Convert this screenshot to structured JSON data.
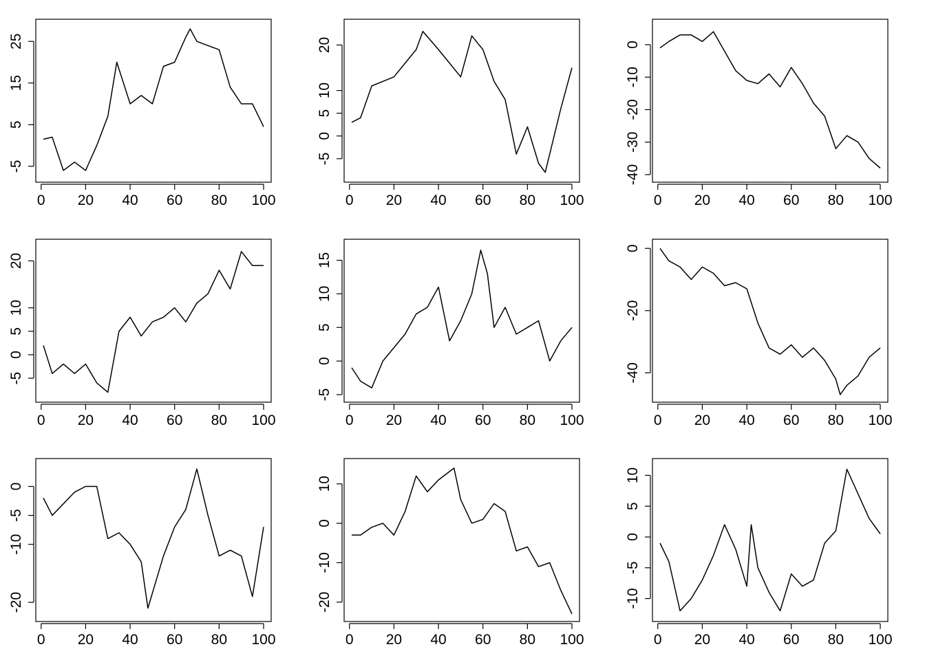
{
  "chart_data": [
    {
      "type": "line",
      "x_ticks": [
        0,
        20,
        40,
        60,
        80,
        100
      ],
      "y_ticks": [
        -5,
        5,
        15,
        25
      ],
      "xlim": [
        1,
        100
      ],
      "ylim": [
        -7,
        28.5
      ],
      "series": [
        {
          "x": [
            1,
            5,
            10,
            15,
            20,
            25,
            30,
            34,
            40,
            45,
            50,
            55,
            60,
            65,
            67,
            70,
            75,
            80,
            85,
            90,
            95,
            100
          ],
          "values": [
            1.5,
            2,
            -6,
            -4,
            -6,
            0,
            7,
            20,
            10,
            12,
            10,
            19,
            20,
            26,
            28,
            25,
            24,
            23,
            14,
            10,
            10,
            4.5
          ]
        }
      ]
    },
    {
      "type": "line",
      "x_ticks": [
        0,
        20,
        40,
        60,
        80,
        100
      ],
      "y_ticks": [
        -5,
        0,
        5,
        10,
        20
      ],
      "xlim": [
        1,
        100
      ],
      "ylim": [
        -8.5,
        24
      ],
      "series": [
        {
          "x": [
            1,
            5,
            10,
            15,
            20,
            25,
            30,
            33,
            40,
            45,
            50,
            55,
            60,
            65,
            70,
            75,
            80,
            85,
            88,
            90,
            95,
            100
          ],
          "values": [
            3,
            4,
            11,
            12,
            13,
            16,
            19,
            23,
            19,
            16,
            13,
            22,
            19,
            12,
            8,
            -4,
            2,
            -6,
            -8,
            -4,
            6,
            15
          ]
        }
      ]
    },
    {
      "type": "line",
      "x_ticks": [
        0,
        20,
        40,
        60,
        80,
        100
      ],
      "y_ticks": [
        -40,
        -30,
        -20,
        -10,
        0
      ],
      "xlim": [
        1,
        100
      ],
      "ylim": [
        -40,
        5.5
      ],
      "series": [
        {
          "x": [
            1,
            5,
            10,
            15,
            20,
            25,
            30,
            35,
            40,
            45,
            50,
            55,
            60,
            65,
            70,
            75,
            80,
            85,
            90,
            95,
            100
          ],
          "values": [
            -1,
            1,
            3,
            3,
            1,
            4,
            -2,
            -8,
            -11,
            -12,
            -9,
            -13,
            -7,
            -12,
            -18,
            -22,
            -32,
            -28,
            -30,
            -35,
            -38
          ]
        }
      ]
    },
    {
      "type": "line",
      "x_ticks": [
        0,
        20,
        40,
        60,
        80,
        100
      ],
      "y_ticks": [
        -5,
        0,
        5,
        10,
        20
      ],
      "xlim": [
        1,
        100
      ],
      "ylim": [
        -8.5,
        23
      ],
      "series": [
        {
          "x": [
            1,
            5,
            10,
            15,
            20,
            25,
            30,
            35,
            40,
            45,
            50,
            55,
            60,
            65,
            70,
            75,
            80,
            85,
            90,
            95,
            100
          ],
          "values": [
            2,
            -4,
            -2,
            -4,
            -2,
            -6,
            -8,
            5,
            8,
            4,
            7,
            8,
            10,
            7,
            11,
            13,
            18,
            14,
            22,
            19,
            19
          ]
        }
      ]
    },
    {
      "type": "line",
      "x_ticks": [
        0,
        20,
        40,
        60,
        80,
        100
      ],
      "y_ticks": [
        -5,
        0,
        5,
        10,
        15
      ],
      "xlim": [
        1,
        100
      ],
      "ylim": [
        -5,
        17
      ],
      "series": [
        {
          "x": [
            1,
            5,
            10,
            15,
            20,
            25,
            30,
            35,
            40,
            45,
            50,
            55,
            59,
            62,
            65,
            70,
            75,
            80,
            85,
            90,
            95,
            100
          ],
          "values": [
            -1,
            -3,
            -4,
            0,
            2,
            4,
            7,
            8,
            11,
            3,
            6,
            10,
            16.5,
            13,
            5,
            8,
            4,
            5,
            6,
            0,
            3,
            5
          ]
        }
      ]
    },
    {
      "type": "line",
      "x_ticks": [
        0,
        20,
        40,
        60,
        80,
        100
      ],
      "y_ticks": [
        -40,
        -20,
        0
      ],
      "xlim": [
        1,
        100
      ],
      "ylim": [
        -47,
        0.5
      ],
      "series": [
        {
          "x": [
            1,
            5,
            10,
            15,
            20,
            25,
            30,
            35,
            40,
            45,
            50,
            55,
            60,
            65,
            70,
            75,
            80,
            82,
            85,
            90,
            95,
            100
          ],
          "values": [
            0,
            -4,
            -6,
            -10,
            -6,
            -8,
            -12,
            -11,
            -13,
            -24,
            -32,
            -34,
            -31,
            -35,
            -32,
            -36,
            -42,
            -47,
            -44,
            -41,
            -35,
            -32
          ]
        }
      ]
    },
    {
      "type": "line",
      "x_ticks": [
        0,
        20,
        40,
        60,
        80,
        100
      ],
      "y_ticks": [
        -20,
        -10,
        -5,
        0
      ],
      "xlim": [
        1,
        100
      ],
      "ylim": [
        -22,
        3.5
      ],
      "series": [
        {
          "x": [
            1,
            5,
            10,
            15,
            20,
            25,
            30,
            35,
            40,
            45,
            48,
            55,
            60,
            65,
            70,
            75,
            80,
            85,
            90,
            95,
            100
          ],
          "values": [
            -2,
            -5,
            -3,
            -1,
            0,
            0,
            -9,
            -8,
            -10,
            -13,
            -21,
            -12,
            -7,
            -4,
            3,
            -5,
            -12,
            -11,
            -12,
            -19,
            -7
          ]
        }
      ]
    },
    {
      "type": "line",
      "x_ticks": [
        0,
        20,
        40,
        60,
        80,
        100
      ],
      "y_ticks": [
        -20,
        -10,
        0,
        10
      ],
      "xlim": [
        1,
        100
      ],
      "ylim": [
        -23,
        14.5
      ],
      "series": [
        {
          "x": [
            1,
            5,
            10,
            15,
            20,
            25,
            30,
            35,
            40,
            47,
            50,
            55,
            60,
            65,
            70,
            75,
            80,
            85,
            90,
            95,
            100
          ],
          "values": [
            -3,
            -3,
            -1,
            0,
            -3,
            3,
            12,
            8,
            11,
            14,
            6,
            0,
            1,
            5,
            3,
            -7,
            -6,
            -11,
            -10,
            -17,
            -23
          ]
        }
      ]
    },
    {
      "type": "line",
      "x_ticks": [
        0,
        20,
        40,
        60,
        80,
        100
      ],
      "y_ticks": [
        -10,
        -5,
        0,
        5,
        10
      ],
      "xlim": [
        1,
        100
      ],
      "ylim": [
        -12.5,
        11.5
      ],
      "series": [
        {
          "x": [
            1,
            5,
            10,
            15,
            20,
            25,
            30,
            35,
            40,
            42,
            45,
            50,
            55,
            60,
            65,
            70,
            75,
            80,
            85,
            90,
            95,
            100
          ],
          "values": [
            -1,
            -4,
            -12,
            -10,
            -7,
            -3,
            2,
            -2,
            -8,
            2,
            -5,
            -9,
            -12,
            -6,
            -8,
            -7,
            -1,
            1,
            11,
            7,
            3,
            0.5
          ]
        }
      ]
    }
  ]
}
